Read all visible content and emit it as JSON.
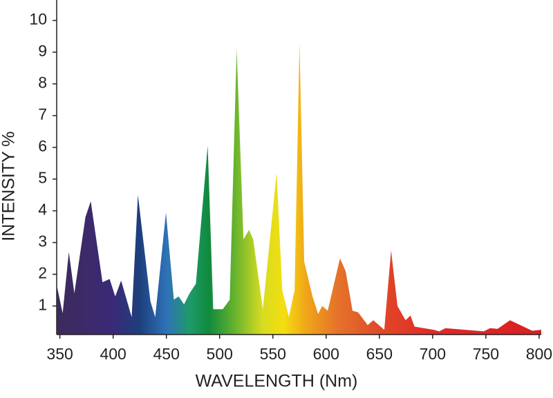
{
  "chart_data": {
    "type": "area",
    "x_label": "WAVELENGTH (Nm)",
    "y_label": "INTENSITY %",
    "x": [
      347.4,
      352.6,
      358.4,
      363.6,
      374,
      379,
      390,
      396.7,
      402,
      407.5,
      417.4,
      423.3,
      435,
      439.5,
      449.6,
      457,
      461.5,
      466.6,
      471.8,
      477.7,
      488.8,
      494,
      503,
      509.5,
      516,
      522.4,
      527.6,
      531.5,
      540.6,
      553.5,
      558.8,
      565,
      570.4,
      575,
      579.4,
      587.2,
      592.5,
      596.3,
      601.5,
      613,
      618.3,
      624.8,
      630,
      639,
      644.3,
      654.6,
      661,
      667,
      674.6,
      679.2,
      683,
      701,
      706.3,
      712,
      748,
      754,
      761,
      772.7,
      793.5,
      802
    ],
    "values": [
      1.6,
      0.77,
      2.7,
      1.4,
      3.8,
      4.3,
      1.75,
      1.85,
      1.3,
      1.8,
      0.65,
      4.5,
      1.15,
      0.65,
      3.95,
      1.2,
      1.3,
      1.05,
      1.4,
      1.7,
      6.05,
      0.9,
      0.9,
      1.2,
      9.1,
      3.1,
      3.4,
      3.1,
      0.9,
      5.2,
      1.5,
      0.65,
      1.5,
      9.3,
      2.4,
      1.3,
      0.75,
      1.0,
      0.85,
      2.5,
      2.1,
      0.85,
      0.8,
      0.4,
      0.55,
      0.25,
      2.75,
      1.0,
      0.55,
      0.7,
      0.35,
      0.25,
      0.2,
      0.3,
      0.2,
      0.3,
      0.28,
      0.55,
      0.22,
      0.25
    ],
    "color_stops": [
      {
        "x": 350,
        "color": "#3d2a5c"
      },
      {
        "x": 400,
        "color": "#3a2a78"
      },
      {
        "x": 425,
        "color": "#1d3f7c"
      },
      {
        "x": 450,
        "color": "#2e72b8"
      },
      {
        "x": 472,
        "color": "#1f9a6a"
      },
      {
        "x": 490,
        "color": "#0f8a3c"
      },
      {
        "x": 515,
        "color": "#6ab42d"
      },
      {
        "x": 540,
        "color": "#d6dc22"
      },
      {
        "x": 560,
        "color": "#f4df10"
      },
      {
        "x": 580,
        "color": "#f0a818"
      },
      {
        "x": 610,
        "color": "#e5742a"
      },
      {
        "x": 650,
        "color": "#e04a28"
      },
      {
        "x": 700,
        "color": "#e02a28"
      },
      {
        "x": 800,
        "color": "#d82020"
      }
    ],
    "xlim": [
      347,
      802
    ],
    "ylim": [
      0.1,
      10.6
    ],
    "xticks": [
      350,
      400,
      450,
      500,
      550,
      600,
      650,
      700,
      750,
      800
    ],
    "yticks": [
      1,
      2,
      3,
      4,
      5,
      6,
      7,
      8,
      9,
      10
    ]
  }
}
